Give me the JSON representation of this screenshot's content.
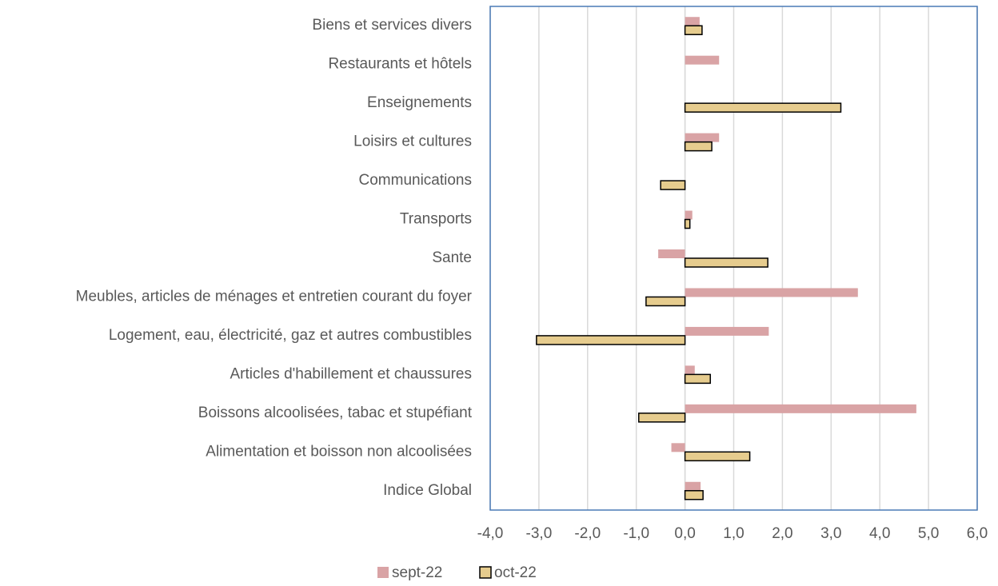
{
  "chart_data": {
    "type": "bar",
    "orientation": "horizontal",
    "categories": [
      "Biens et services divers",
      "Restaurants et hôtels",
      "Enseignements",
      "Loisirs et cultures",
      "Communications",
      "Transports",
      "Sante",
      "Meubles, articles de ménages et entretien courant du foyer",
      "Logement, eau, électricité, gaz et autres combustibles",
      "Articles d'habillement et chaussures",
      "Boissons alcoolisées, tabac et stupéfiant",
      "Alimentation et boisson non alcoolisées",
      "Indice Global"
    ],
    "series": [
      {
        "name": "sept-22",
        "color": "#d9a3a5",
        "values": [
          0.3,
          0.7,
          null,
          0.7,
          null,
          0.15,
          -0.55,
          3.55,
          1.72,
          0.2,
          4.75,
          -0.28,
          0.32
        ]
      },
      {
        "name": "oct-22",
        "color": "#e6cc8e",
        "values": [
          0.35,
          null,
          3.2,
          0.55,
          -0.5,
          0.1,
          1.7,
          -0.8,
          -3.05,
          0.52,
          -0.95,
          1.33,
          0.37
        ]
      }
    ],
    "xlim": [
      -4,
      6
    ],
    "xticks": [
      {
        "value": -4,
        "label": "-4,0"
      },
      {
        "value": -3,
        "label": "-3,0"
      },
      {
        "value": -2,
        "label": "-2,0"
      },
      {
        "value": -1,
        "label": "-1,0"
      },
      {
        "value": 0,
        "label": "0,0"
      },
      {
        "value": 1,
        "label": "1,0"
      },
      {
        "value": 2,
        "label": "2,0"
      },
      {
        "value": 3,
        "label": "3,0"
      },
      {
        "value": 4,
        "label": "4,0"
      },
      {
        "value": 5,
        "label": "5,0"
      },
      {
        "value": 6,
        "label": "6,0"
      }
    ],
    "grid": true,
    "legend": "bottom"
  }
}
